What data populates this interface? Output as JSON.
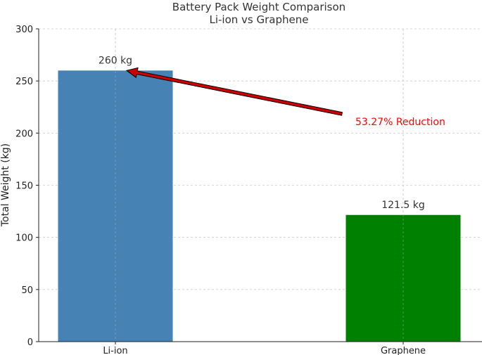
{
  "chart_data": {
    "type": "bar",
    "title": "Battery Pack Weight Comparison",
    "subtitle": "Li-ion vs Graphene",
    "ylabel": "Total Weight (kg)",
    "xlabel": "",
    "categories": [
      "Li-ion",
      "Graphene"
    ],
    "values": [
      260,
      121.5
    ],
    "data_labels": [
      "260 kg",
      "121.5 kg"
    ],
    "colors": [
      "#4682b4",
      "#008000"
    ],
    "ylim": [
      0,
      300
    ],
    "yticks": [
      0,
      50,
      100,
      150,
      200,
      250,
      300
    ],
    "grid": true,
    "annotation": {
      "text": "53.27% Reduction",
      "color": "#ff0000",
      "arrow_color": "#cc0000",
      "points_to_category": "Li-ion",
      "points_to_value": 260
    }
  }
}
